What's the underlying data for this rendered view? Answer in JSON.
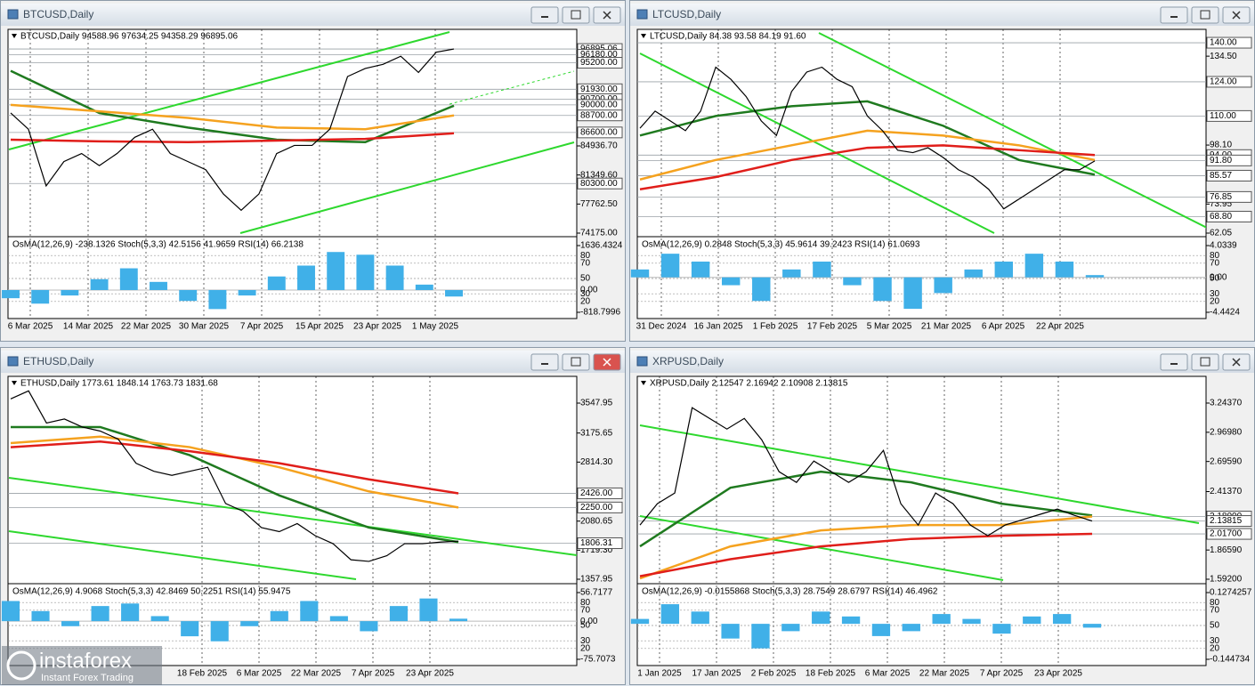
{
  "windows": [
    {
      "title": "BTCUSD,Daily",
      "quote": "BTCUSD,Daily  94588.96 97634.25 94358.29 96895.06",
      "ylim": [
        74175,
        99100
      ],
      "price_ticks": [
        {
          "value": 84936.7,
          "label": "84936.70"
        },
        {
          "value": 81349.6,
          "label": "81349.60"
        },
        {
          "value": 77762.5,
          "label": "77762.50"
        },
        {
          "value": 74175,
          "label": "74175.00"
        }
      ],
      "price_levels": [
        {
          "value": 96895.06,
          "label": "96895.06"
        },
        {
          "value": 96180,
          "label": "96180.00"
        },
        {
          "value": 95200,
          "label": "95200.00"
        },
        {
          "value": 91930,
          "label": "91930.00"
        },
        {
          "value": 90700,
          "label": "90700.00"
        },
        {
          "value": 90000,
          "label": "90000.00"
        },
        {
          "value": 88700,
          "label": "88700.00"
        },
        {
          "value": 86600,
          "label": "86600.00"
        },
        {
          "value": 80300,
          "label": "80300.00"
        }
      ],
      "closes": [
        89000,
        87000,
        80000,
        83000,
        84000,
        82500,
        84000,
        86000,
        87000,
        84000,
        83000,
        82000,
        79000,
        77000,
        79000,
        84000,
        85000,
        85000,
        87000,
        93500,
        94500,
        95000,
        96000,
        94000,
        96500,
        96895.06
      ],
      "moving_averages": [
        {
          "color": "#1f7a1f",
          "values": [
            94200,
            89000,
            87200,
            85700,
            85400,
            89900
          ]
        },
        {
          "color": "#f5a21f",
          "values": [
            90000,
            89200,
            88400,
            87200,
            87000,
            88700
          ]
        },
        {
          "color": "#e01e1a",
          "values": [
            85700,
            85500,
            85400,
            85600,
            85800,
            86500
          ]
        }
      ],
      "indicator": {
        "header": "OsMA(12,26,9) -238.1326  Stoch(5,3,3) 42.5156 41.9659  RSI(14) 66.2138",
        "range": [
          {
            "value": -818.7996,
            "label": "-818.7996"
          },
          {
            "value": 1636.4324,
            "label": "1636.4324"
          }
        ],
        "zero": {
          "value": 0,
          "label": "0.00"
        },
        "levels": [
          80,
          70,
          50,
          30,
          20
        ],
        "osma": [
          -300,
          -500,
          -200,
          400,
          800,
          300,
          -400,
          -700,
          -200,
          500,
          900,
          1400,
          1300,
          900,
          200,
          -238.1326
        ]
      },
      "dates": [
        "6 Mar 2025",
        "14 Mar 2025",
        "22 Mar 2025",
        "30 Mar 2025",
        "7 Apr 2025",
        "15 Apr 2025",
        "23 Apr 2025",
        "1 May 2025"
      ]
    },
    {
      "title": "LTCUSD,Daily",
      "quote": "LTCUSD,Daily  84.38 93.58 84.19 91.60",
      "ylim": [
        62.05,
        144.75
      ],
      "price_ticks": [
        {
          "value": 134.5,
          "label": "134.50"
        },
        {
          "value": 98.1,
          "label": "98.10"
        },
        {
          "value": 73.95,
          "label": "73.95"
        },
        {
          "value": 62.05,
          "label": "62.05"
        }
      ],
      "price_levels": [
        {
          "value": 140,
          "label": "140.00"
        },
        {
          "value": 124,
          "label": "124.00"
        },
        {
          "value": 110,
          "label": "110.00"
        },
        {
          "value": 94,
          "label": "94.00"
        },
        {
          "value": 91.8,
          "label": "91.80"
        },
        {
          "value": 85.57,
          "label": "85.57"
        },
        {
          "value": 76.85,
          "label": "76.85"
        },
        {
          "value": 68.8,
          "label": "68.80"
        }
      ],
      "closes": [
        105,
        112,
        108,
        104,
        112,
        130,
        125,
        118,
        108,
        102,
        120,
        128,
        130,
        125,
        122,
        110,
        104,
        96,
        95,
        97,
        93,
        88,
        85,
        80,
        72,
        76,
        80,
        84,
        88,
        88,
        91.6
      ],
      "moving_averages": [
        {
          "color": "#1f7a1f",
          "values": [
            102,
            110,
            114,
            116,
            106,
            92,
            86
          ]
        },
        {
          "color": "#f5a21f",
          "values": [
            84,
            92,
            98,
            104,
            102,
            98,
            92
          ]
        },
        {
          "color": "#e01e1a",
          "values": [
            80,
            85,
            92,
            97,
            98,
            96,
            94
          ]
        }
      ],
      "indicator": {
        "header": "OsMA(12,26,9) 0.2848  Stoch(5,3,3) 45.9614 39.2423  RSI(14) 61.0693",
        "range": [
          {
            "value": -4.4424,
            "label": "-4.4424"
          },
          {
            "value": 4.0339,
            "label": "4.0339"
          }
        ],
        "zero": {
          "value": 0,
          "label": "0.00"
        },
        "levels": [
          80,
          70,
          50,
          30,
          20
        ],
        "osma": [
          1,
          3,
          2,
          -1,
          -3,
          1,
          2,
          -1,
          -3,
          -4,
          -2,
          1,
          2,
          3,
          2,
          0.2848
        ]
      },
      "dates": [
        "31 Dec 2024",
        "16 Jan 2025",
        "1 Feb 2025",
        "17 Feb 2025",
        "5 Mar 2025",
        "21 Mar 2025",
        "6 Apr 2025",
        "22 Apr 2025"
      ]
    },
    {
      "title": "ETHUSD,Daily",
      "quote": "ETHUSD,Daily  1773.61 1848.14 1763.73 1831.68",
      "ylim": [
        1347,
        3858
      ],
      "price_ticks": [
        {
          "value": 3547.95,
          "label": "3547.95"
        },
        {
          "value": 3175.65,
          "label": "3175.65"
        },
        {
          "value": 2814.3,
          "label": "2814.30"
        },
        {
          "value": 2080.65,
          "label": "2080.65"
        },
        {
          "value": 1719.3,
          "label": "1719.30"
        },
        {
          "value": 1357.95,
          "label": "1357.95"
        }
      ],
      "price_levels": [
        {
          "value": 2426,
          "label": "2426.00"
        },
        {
          "value": 2250,
          "label": "2250.00"
        },
        {
          "value": 1806.31,
          "label": "1806.31"
        }
      ],
      "closes": [
        3600,
        3700,
        3300,
        3350,
        3250,
        3200,
        3100,
        2800,
        2700,
        2650,
        2700,
        2750,
        2300,
        2200,
        2000,
        1950,
        2050,
        1900,
        1800,
        1600,
        1580,
        1650,
        1800,
        1800,
        1820,
        1831.68
      ],
      "moving_averages": [
        {
          "color": "#1f7a1f",
          "values": [
            3250,
            3250,
            2900,
            2400,
            2000,
            1820
          ]
        },
        {
          "color": "#f5a21f",
          "values": [
            3050,
            3130,
            3000,
            2750,
            2450,
            2250
          ]
        },
        {
          "color": "#e01e1a",
          "values": [
            3000,
            3070,
            2950,
            2800,
            2600,
            2426
          ]
        }
      ],
      "indicator": {
        "header": "OsMA(12,26,9) 4.9068  Stoch(5,3,3) 42.8469 50.2251  RSI(14) 55.9475",
        "range": [
          {
            "value": -75.7073,
            "label": "-75.7073"
          },
          {
            "value": 56.7177,
            "label": "56.7177"
          }
        ],
        "zero": {
          "value": 0,
          "label": "0.00"
        },
        "levels": [
          80,
          70,
          50,
          30,
          20
        ],
        "osma": [
          40,
          20,
          -10,
          30,
          35,
          10,
          -30,
          -40,
          -10,
          20,
          40,
          10,
          -20,
          30,
          45,
          4.9068
        ]
      },
      "dates": [
        "18 Feb 2025",
        "6 Mar 2025",
        "22 Mar 2025",
        "7 Apr 2025",
        "23 Apr 2025"
      ]
    },
    {
      "title": "XRPUSD,Daily",
      "quote": "XRPUSD,Daily  2.12547 2.16942 2.10908 2.13815",
      "ylim": [
        1.5837,
        3.4773
      ],
      "price_ticks": [
        {
          "value": 3.2437,
          "label": "3.24370"
        },
        {
          "value": 2.9698,
          "label": "2.96980"
        },
        {
          "value": 2.6959,
          "label": "2.69590"
        },
        {
          "value": 2.4137,
          "label": "2.41370"
        },
        {
          "value": 1.8659,
          "label": "1.86590"
        },
        {
          "value": 1.592,
          "label": "1.59200"
        }
      ],
      "price_levels": [
        {
          "value": 2.18,
          "label": "2.18000"
        },
        {
          "value": 2.13815,
          "label": "2.13815"
        },
        {
          "value": 2.017,
          "label": "2.01700"
        }
      ],
      "closes": [
        2.1,
        2.3,
        2.4,
        3.2,
        3.1,
        3.0,
        3.1,
        2.9,
        2.6,
        2.5,
        2.7,
        2.6,
        2.5,
        2.6,
        2.8,
        2.3,
        2.1,
        2.4,
        2.3,
        2.1,
        2.0,
        2.1,
        2.15,
        2.2,
        2.25,
        2.19,
        2.13815
      ],
      "moving_averages": [
        {
          "color": "#1f7a1f",
          "values": [
            1.9,
            2.45,
            2.6,
            2.5,
            2.3,
            2.19
          ]
        },
        {
          "color": "#f5a21f",
          "values": [
            1.6,
            1.9,
            2.05,
            2.1,
            2.1,
            2.18
          ]
        },
        {
          "color": "#e01e1a",
          "values": [
            1.62,
            1.78,
            1.9,
            1.97,
            2.0,
            2.017
          ]
        }
      ],
      "indicator": {
        "header": "OsMA(12,26,9) -0.0155868  Stoch(5,3,3) 28.7549 28.6797  RSI(14) 46.4962",
        "range": [
          {
            "value": -0.144734,
            "label": "-0.144734"
          },
          {
            "value": 0.1274257,
            "label": "0.1274257"
          }
        ],
        "levels": [
          80,
          70,
          50,
          30,
          20
        ],
        "osma": [
          0.02,
          0.08,
          0.05,
          -0.06,
          -0.1,
          -0.03,
          0.05,
          0.03,
          -0.05,
          -0.03,
          0.04,
          0.02,
          -0.04,
          0.03,
          0.04,
          -0.0155868
        ]
      },
      "dates": [
        "1 Jan 2025",
        "17 Jan 2025",
        "2 Feb 2025",
        "18 Feb 2025",
        "6 Mar 2025",
        "22 Mar 2025",
        "7 Apr 2025",
        "23 Apr 2025"
      ]
    }
  ],
  "logo": {
    "name": "instaforex",
    "tagline": "Instant Forex Trading"
  }
}
